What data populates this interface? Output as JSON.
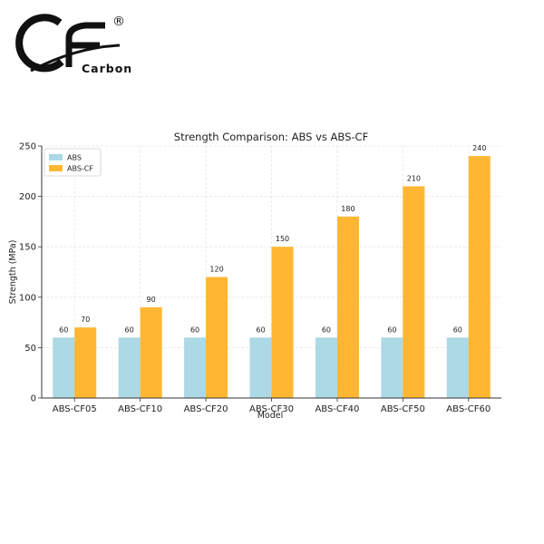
{
  "logo": {
    "letters": "CF",
    "registered": "®",
    "brand": "Carbon"
  },
  "chart_data": {
    "type": "bar",
    "title": "Strength Comparison: ABS vs ABS-CF",
    "xlabel": "Model",
    "ylabel": "Strength (MPa)",
    "categories": [
      "ABS-CF05",
      "ABS-CF10",
      "ABS-CF20",
      "ABS-CF30",
      "ABS-CF40",
      "ABS-CF50",
      "ABS-CF60"
    ],
    "series": [
      {
        "name": "ABS",
        "values": [
          60,
          60,
          60,
          60,
          60,
          60,
          60
        ],
        "color": "#add8e6"
      },
      {
        "name": "ABS-CF",
        "values": [
          70,
          90,
          120,
          150,
          180,
          210,
          240
        ],
        "color": "#ffb733"
      }
    ],
    "ylim": [
      0,
      250
    ],
    "yticks": [
      0,
      50,
      100,
      150,
      200,
      250
    ],
    "grid": true,
    "legend": "top-left"
  }
}
